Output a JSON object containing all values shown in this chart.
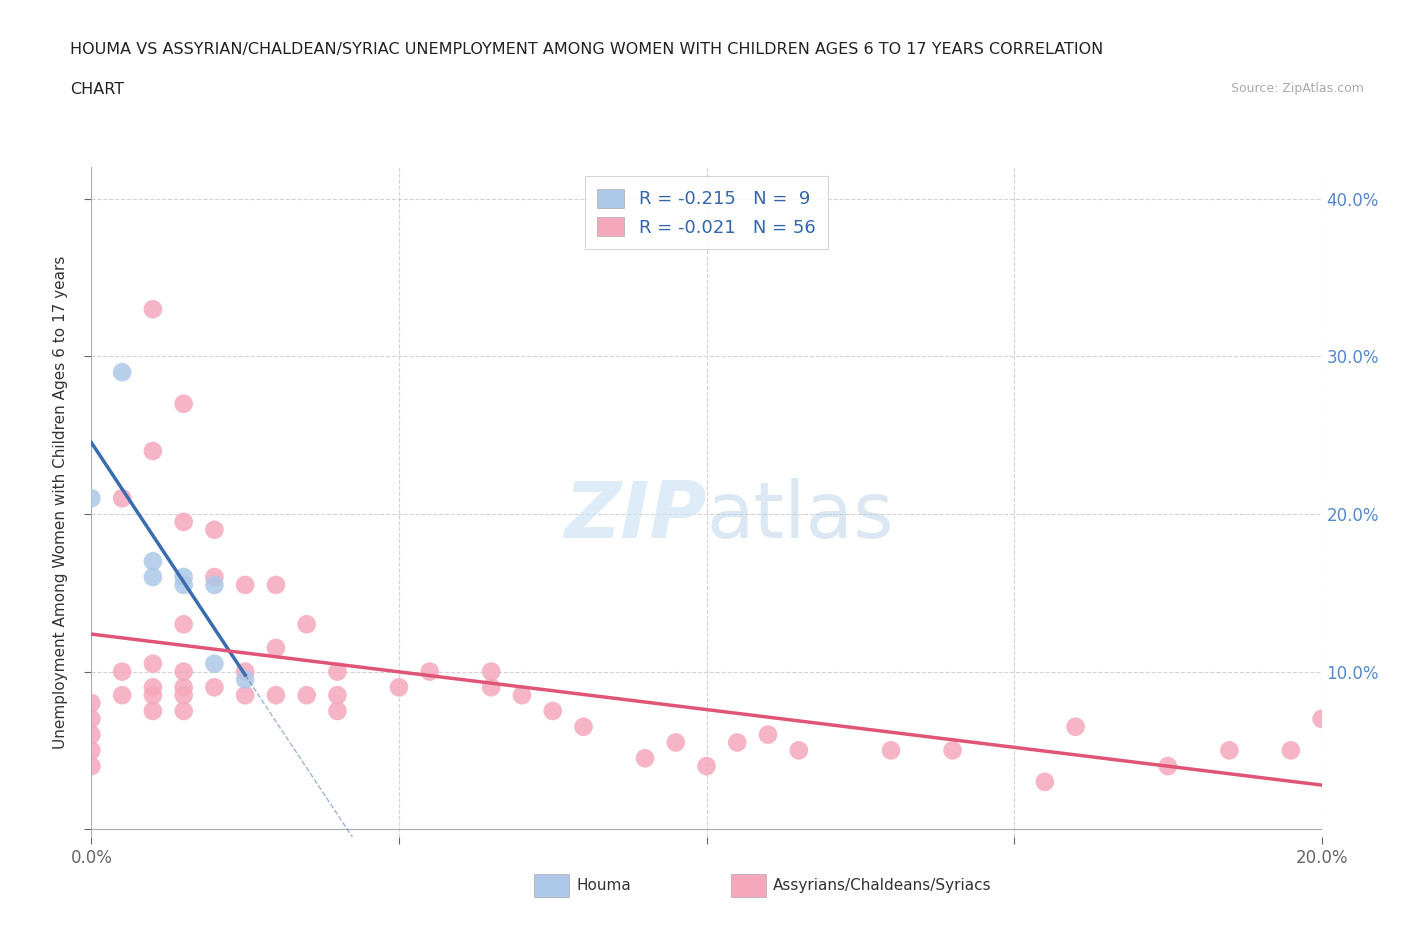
{
  "title_line1": "HOUMA VS ASSYRIAN/CHALDEAN/SYRIAC UNEMPLOYMENT AMONG WOMEN WITH CHILDREN AGES 6 TO 17 YEARS CORRELATION",
  "title_line2": "CHART",
  "source": "Source: ZipAtlas.com",
  "ylabel": "Unemployment Among Women with Children Ages 6 to 17 years",
  "xlim": [
    0.0,
    0.2
  ],
  "ylim": [
    -0.005,
    0.42
  ],
  "houma_R": -0.215,
  "houma_N": 9,
  "assyr_R": -0.021,
  "assyr_N": 56,
  "houma_color": "#adc8e8",
  "assyr_color": "#f5a8bc",
  "houma_line_color": "#3a6cb0",
  "assyr_line_color": "#e05575",
  "legend_houma": "Houma",
  "legend_assyr": "Assyrians/Chaldeans/Syriacs",
  "background_color": "#ffffff",
  "grid_color": "#c8c8c8",
  "houma_points_x": [
    0.0,
    0.005,
    0.01,
    0.01,
    0.015,
    0.015,
    0.02,
    0.02,
    0.025
  ],
  "houma_points_y": [
    0.21,
    0.29,
    0.17,
    0.16,
    0.16,
    0.155,
    0.155,
    0.105,
    0.095
  ],
  "assyr_points_x": [
    0.0,
    0.0,
    0.0,
    0.0,
    0.0,
    0.005,
    0.005,
    0.005,
    0.01,
    0.01,
    0.01,
    0.01,
    0.01,
    0.01,
    0.015,
    0.015,
    0.015,
    0.015,
    0.015,
    0.015,
    0.015,
    0.02,
    0.02,
    0.02,
    0.025,
    0.025,
    0.025,
    0.03,
    0.03,
    0.03,
    0.035,
    0.035,
    0.04,
    0.04,
    0.04,
    0.05,
    0.055,
    0.065,
    0.065,
    0.07,
    0.075,
    0.08,
    0.09,
    0.095,
    0.1,
    0.105,
    0.11,
    0.115,
    0.13,
    0.14,
    0.155,
    0.16,
    0.175,
    0.185,
    0.195,
    0.2
  ],
  "assyr_points_y": [
    0.08,
    0.07,
    0.06,
    0.05,
    0.04,
    0.21,
    0.1,
    0.085,
    0.33,
    0.24,
    0.105,
    0.09,
    0.085,
    0.075,
    0.27,
    0.195,
    0.13,
    0.1,
    0.09,
    0.085,
    0.075,
    0.19,
    0.16,
    0.09,
    0.155,
    0.1,
    0.085,
    0.155,
    0.115,
    0.085,
    0.13,
    0.085,
    0.1,
    0.085,
    0.075,
    0.09,
    0.1,
    0.1,
    0.09,
    0.085,
    0.075,
    0.065,
    0.045,
    0.055,
    0.04,
    0.055,
    0.06,
    0.05,
    0.05,
    0.05,
    0.03,
    0.065,
    0.04,
    0.05,
    0.05,
    0.07
  ]
}
